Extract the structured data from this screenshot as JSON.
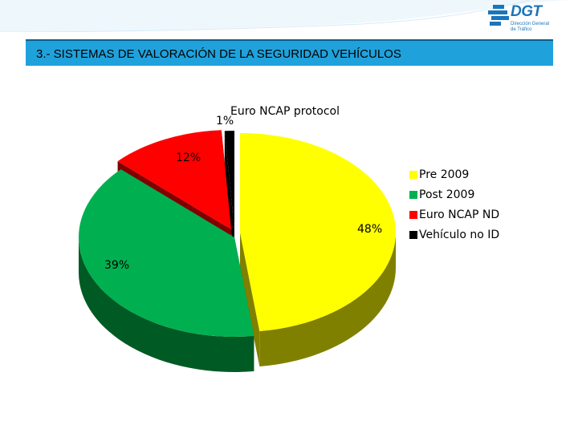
{
  "header": {
    "logo_text": "DGT",
    "logo_sub_1": "Dirección General",
    "logo_sub_2": "de Tráfico"
  },
  "title": "3.- SISTEMAS DE VALORACIÓN DE LA SEGURIDAD VEHÍCULOS",
  "chart_data": {
    "type": "pie",
    "style": "3d-exploded",
    "legend_position": "right",
    "slices": [
      {
        "name": "Pre 2009",
        "value": 48,
        "label": "48%",
        "color": "#ffff00",
        "side_color": "#808000"
      },
      {
        "name": "Post 2009",
        "value": 39,
        "label": "39%",
        "color": "#00b050",
        "side_color": "#005a24"
      },
      {
        "name": "Euro NCAP ND",
        "value": 12,
        "label": "12%",
        "color": "#ff0000",
        "side_color": "#800000"
      },
      {
        "name": "Vehículo no ID",
        "value": 1,
        "label": "1%",
        "color": "#000000",
        "side_color": "#000000"
      }
    ],
    "annotation": "Euro NCAP protocol"
  }
}
